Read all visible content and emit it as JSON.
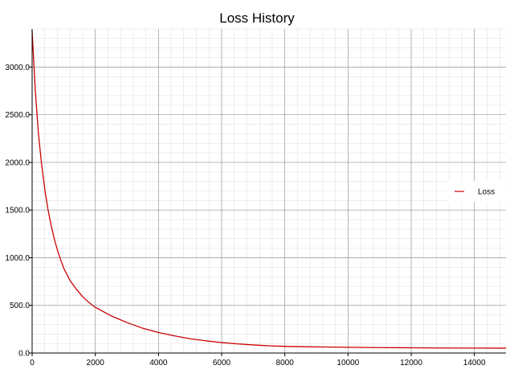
{
  "chart_data": {
    "type": "line",
    "title": "Loss History",
    "xlabel": "",
    "ylabel": "",
    "xlim": [
      0,
      15000
    ],
    "ylim": [
      0,
      3400
    ],
    "x_ticks": [
      0,
      2000,
      4000,
      6000,
      8000,
      10000,
      12000,
      14000
    ],
    "x_tick_labels": [
      "0",
      "2000",
      "4000",
      "6000",
      "8000",
      "10000",
      "12000",
      "14000"
    ],
    "y_ticks": [
      0,
      500,
      1000,
      1500,
      2000,
      2500,
      3000
    ],
    "y_tick_labels": [
      "0.0",
      "500.0",
      "1000.0",
      "1500.0",
      "2000.0",
      "2500.0",
      "3000.0"
    ],
    "grid": true,
    "minor_grid": true,
    "legend": {
      "position": "right",
      "entries": [
        "Loss"
      ]
    },
    "series": [
      {
        "name": "Loss",
        "color": "#cc0000",
        "x": [
          0,
          100,
          200,
          300,
          400,
          500,
          600,
          700,
          800,
          900,
          1000,
          1200,
          1400,
          1600,
          1800,
          2000,
          2500,
          3000,
          3500,
          4000,
          4500,
          5000,
          5500,
          6000,
          6500,
          7000,
          7500,
          8000,
          9000,
          10000,
          11000,
          12000,
          13000,
          14000,
          15000
        ],
        "y": [
          3380,
          2760,
          2300,
          1980,
          1720,
          1510,
          1340,
          1200,
          1080,
          980,
          890,
          760,
          670,
          590,
          530,
          480,
          390,
          320,
          260,
          215,
          180,
          150,
          128,
          110,
          96,
          85,
          76,
          70,
          64,
          60,
          57,
          55,
          53,
          52,
          51
        ]
      }
    ]
  }
}
